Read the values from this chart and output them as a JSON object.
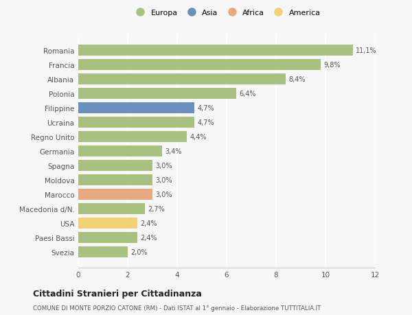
{
  "countries": [
    "Romania",
    "Francia",
    "Albania",
    "Polonia",
    "Filippine",
    "Ucraina",
    "Regno Unito",
    "Germania",
    "Spagna",
    "Moldova",
    "Marocco",
    "Macedonia d/N.",
    "USA",
    "Paesi Bassi",
    "Svezia"
  ],
  "values": [
    11.1,
    9.8,
    8.4,
    6.4,
    4.7,
    4.7,
    4.4,
    3.4,
    3.0,
    3.0,
    3.0,
    2.7,
    2.4,
    2.4,
    2.0
  ],
  "labels": [
    "11,1%",
    "9,8%",
    "8,4%",
    "6,4%",
    "4,7%",
    "4,7%",
    "4,4%",
    "3,4%",
    "3,0%",
    "3,0%",
    "3,0%",
    "2,7%",
    "2,4%",
    "2,4%",
    "2,0%"
  ],
  "bar_colors": [
    "#a8c080",
    "#a8c080",
    "#a8c080",
    "#a8c080",
    "#6b8fbe",
    "#a8c080",
    "#a8c080",
    "#a8c080",
    "#a8c080",
    "#a8c080",
    "#e8a880",
    "#a8c080",
    "#f0d070",
    "#a8c080",
    "#a8c080"
  ],
  "legend_labels": [
    "Europa",
    "Asia",
    "Africa",
    "America"
  ],
  "legend_colors": [
    "#a8c080",
    "#6b8fbe",
    "#e8a880",
    "#f0d070"
  ],
  "title": "Cittadini Stranieri per Cittadinanza",
  "subtitle": "COMUNE DI MONTE PORZIO CATONE (RM) - Dati ISTAT al 1° gennaio - Elaborazione TUTTITALIA.IT",
  "xlim": [
    0,
    12
  ],
  "xticks": [
    0,
    2,
    4,
    6,
    8,
    10,
    12
  ],
  "background_color": "#f7f7f7",
  "bar_height": 0.75
}
